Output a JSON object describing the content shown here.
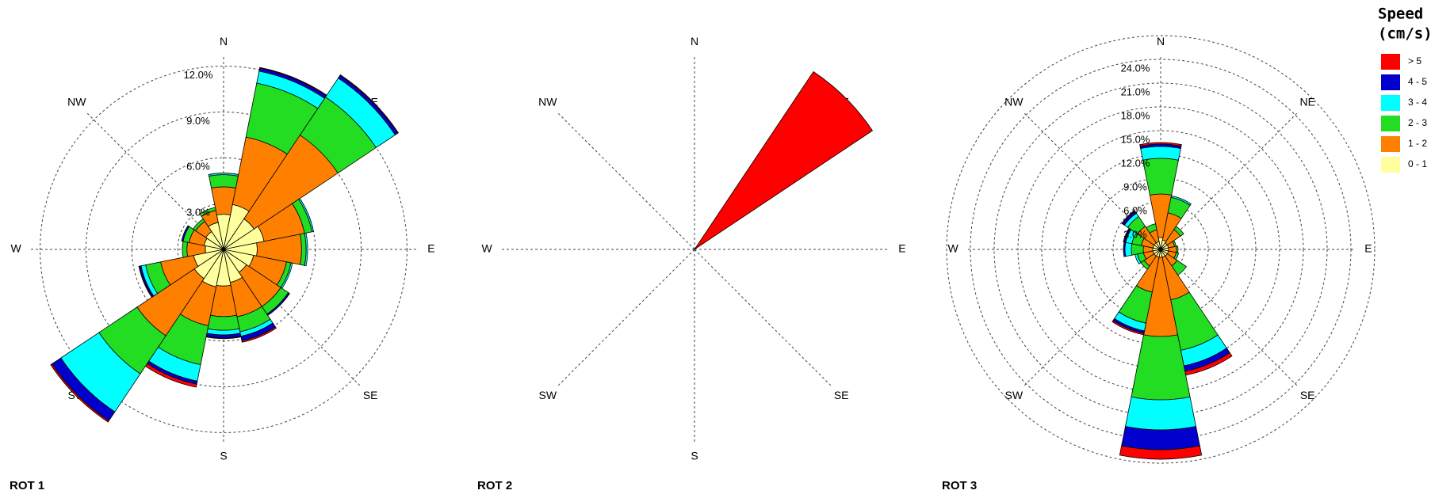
{
  "chart_data": [
    {
      "type": "windrose",
      "title": "ROT 1",
      "categories": [
        "N",
        null,
        "NE",
        null,
        "E",
        null,
        "SE",
        null,
        "S",
        null,
        "SW",
        null,
        "W",
        null,
        "NW",
        null
      ],
      "ylim": [
        0,
        14
      ],
      "yticks": [
        {
          "value": 3,
          "label": "3.0%"
        },
        {
          "value": 6,
          "label": "6.0%"
        },
        {
          "value": 9,
          "label": "9.0%"
        },
        {
          "value": 12,
          "label": "12.0%"
        }
      ],
      "grid": true,
      "legend_title": [
        "Speed",
        "(cm/s)"
      ],
      "series": [
        {
          "name": "0 - 1",
          "color": "#ffff9e",
          "values": [
            2.3,
            3.0,
            2.4,
            2.7,
            2.2,
            2.0,
            1.8,
            2.2,
            2.4,
            2.5,
            2.3,
            2.0,
            1.2,
            1.3,
            1.4,
            1.8
          ]
        },
        {
          "name": "1 - 2",
          "color": "#ff8000",
          "values": [
            1.8,
            4.5,
            6.6,
            2.7,
            2.9,
            2.2,
            2.7,
            2.3,
            2.0,
            2.6,
            4.5,
            2.2,
            1.2,
            1.0,
            0.8,
            0.8
          ]
        },
        {
          "name": "2 - 3",
          "color": "#22dd22",
          "values": [
            0.8,
            3.6,
            3.0,
            0.5,
            0.3,
            0.3,
            0.6,
            1.0,
            0.9,
            2.6,
            3.0,
            1.0,
            0.3,
            0.4,
            0.2,
            0.2
          ]
        },
        {
          "name": "3 - 4",
          "color": "#00ffff",
          "values": [
            0.1,
            0.8,
            1.5,
            0.1,
            0.1,
            0.1,
            0,
            0.3,
            0.3,
            1.1,
            3.0,
            0.3,
            0,
            0,
            0,
            0
          ]
        },
        {
          "name": "4 - 5",
          "color": "#0000cc",
          "values": [
            0,
            0.2,
            0.2,
            0,
            0,
            0,
            0.1,
            0.3,
            0.2,
            0.2,
            0.7,
            0.1,
            0,
            0.1,
            0,
            0
          ]
        },
        {
          "name": "> 5",
          "color": "#ff0000",
          "values": [
            0,
            0.05,
            0.05,
            0,
            0,
            0,
            0,
            0.1,
            0.05,
            0.2,
            0.1,
            0.05,
            0,
            0,
            0,
            0
          ]
        }
      ]
    },
    {
      "type": "windrose",
      "title": "ROT 2",
      "categories": [
        "N",
        null,
        "NE",
        null,
        "E",
        null,
        "SE",
        null,
        "S",
        null,
        "SW",
        null,
        "W",
        null,
        "NW",
        null
      ],
      "ylim": [
        0,
        100
      ],
      "grid": false,
      "series": [
        {
          "values": [
            0,
            0,
            0,
            0,
            0,
            0,
            0,
            0,
            0,
            0,
            0,
            0,
            0,
            0,
            0,
            0
          ]
        },
        {
          "values": [
            0,
            0,
            0,
            0,
            0,
            0,
            0,
            0,
            0,
            0,
            0,
            0,
            0,
            0,
            0,
            0
          ]
        },
        {
          "values": [
            0,
            0,
            0,
            0,
            0,
            0,
            0,
            0,
            0,
            0,
            0,
            0,
            0,
            0,
            0,
            0
          ]
        },
        {
          "values": [
            0,
            0,
            0,
            0,
            0,
            0,
            0,
            0,
            0,
            0,
            0,
            0,
            0,
            0,
            0,
            0
          ]
        },
        {
          "values": [
            0,
            0,
            0,
            0,
            0,
            0,
            0,
            0,
            0,
            0,
            0,
            0,
            0,
            0,
            0,
            0
          ]
        },
        {
          "values": [
            0,
            0,
            100,
            0,
            0,
            0,
            0,
            0,
            0,
            0,
            0,
            0,
            0,
            0,
            0,
            0
          ]
        }
      ]
    },
    {
      "type": "windrose",
      "title": "ROT 3",
      "categories": [
        "N",
        null,
        "NE",
        null,
        "E",
        null,
        "SE",
        null,
        "S",
        null,
        "SW",
        null,
        "W",
        null,
        "NW",
        null
      ],
      "ylim": [
        0,
        27
      ],
      "yticks": [
        {
          "value": 3,
          "label": "3.0%"
        },
        {
          "value": 6,
          "label": "6.0%"
        },
        {
          "value": 9,
          "label": "9.0%"
        },
        {
          "value": 12,
          "label": "12.0%"
        },
        {
          "value": 15,
          "label": "15.0%"
        },
        {
          "value": 18,
          "label": "18.0%"
        },
        {
          "value": 21,
          "label": "21.0%"
        },
        {
          "value": 24,
          "label": "24.0%"
        }
      ],
      "grid": true,
      "frame": true,
      "series": [
        {
          "values": [
            1.5,
            1.2,
            1.0,
            1.0,
            1.0,
            1.0,
            1.0,
            1.0,
            1.0,
            1.0,
            1.0,
            1.0,
            1.0,
            1.0,
            1.0,
            1.0
          ]
        },
        {
          "values": [
            5.5,
            3.5,
            2.0,
            0.8,
            1.0,
            1.0,
            1.5,
            5.5,
            10.0,
            4.5,
            1.5,
            1.2,
            1.2,
            1.5,
            2.5,
            1.5
          ]
        },
        {
          "values": [
            4.5,
            2.0,
            0.5,
            0.2,
            0.2,
            0.3,
            1.4,
            6.5,
            8.0,
            4.0,
            0.5,
            0.8,
            1.5,
            1.2,
            1.5,
            0.8
          ]
        },
        {
          "values": [
            1.5,
            0.2,
            0,
            0,
            0,
            0,
            0,
            2.0,
            3.8,
            1.0,
            0,
            0.3,
            0.8,
            0.8,
            0.5,
            0
          ]
        },
        {
          "values": [
            0.3,
            0,
            0,
            0,
            0,
            0,
            0,
            0.7,
            2.5,
            0.3,
            0,
            0,
            0.2,
            0.2,
            0.3,
            0
          ]
        },
        {
          "values": [
            0.2,
            0,
            0,
            0,
            0,
            0,
            0,
            0.5,
            1.2,
            0.2,
            0,
            0,
            0,
            0.1,
            0.1,
            0
          ]
        }
      ]
    }
  ]
}
